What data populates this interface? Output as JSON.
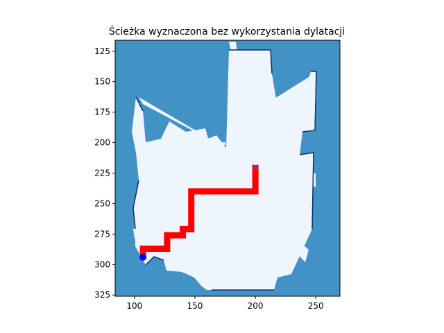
{
  "chart_data": {
    "type": "heatmap",
    "title": "Ścieżka wyznaczona bez wykorzystania dylatacji",
    "xlabel": "",
    "ylabel": "",
    "xlim": [
      84,
      270
    ],
    "ylim": [
      326,
      116
    ],
    "y_inverted": true,
    "xticks": [
      100,
      150,
      200,
      250
    ],
    "yticks": [
      125,
      150,
      175,
      200,
      225,
      250,
      275,
      300,
      325
    ],
    "grid": false,
    "legend": "none",
    "colors": {
      "background": "#4292c6",
      "free_space": "#eef5fc",
      "obstacle_edge": "#08306b",
      "path": "#ff0000",
      "start_marker": "#0000ff",
      "goal_marker": "#9b30b0"
    },
    "path": {
      "x": [
        107,
        107,
        127,
        127,
        133,
        133,
        140,
        140,
        147,
        147,
        200,
        200
      ],
      "y": [
        293,
        287,
        287,
        276,
        276,
        276,
        276,
        271,
        271,
        240,
        240,
        221
      ]
    },
    "start": {
      "x": 107,
      "y": 294,
      "marker": "circle"
    },
    "goal": {
      "x": 200,
      "y": 220,
      "marker": "x"
    }
  }
}
